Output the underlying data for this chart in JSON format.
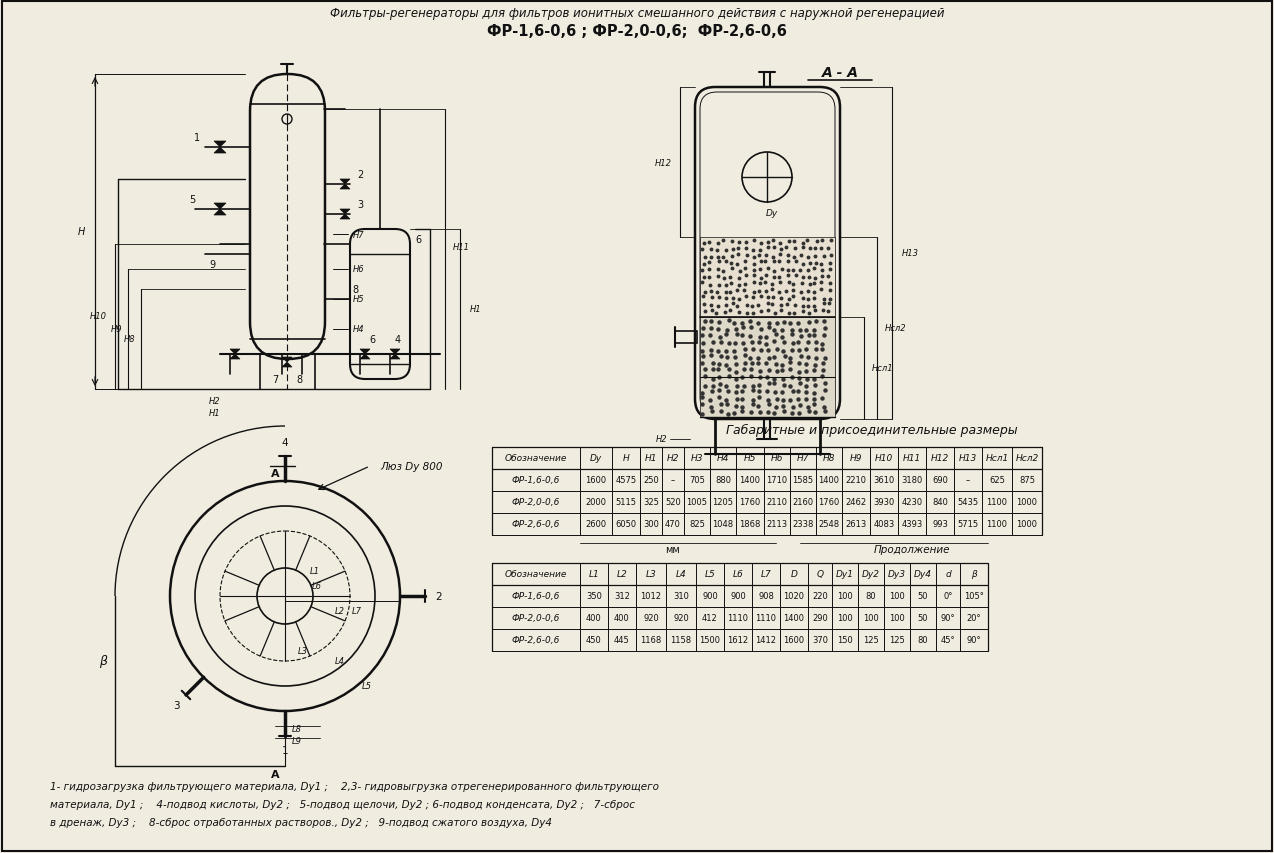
{
  "title_line1": "Фильтры-регенераторы для фильтров ионитных смешанного действия с наружной регенерацией",
  "title_line2": "ФР-1,6-0,6 ; ФР-2,0-0,6;  ФР-2,6-0,6",
  "section_label": "А - А",
  "table_title": "Габаритные и присоединительные размеры",
  "mm_label": "мм",
  "prodolzhenie_label": "Продолжение",
  "table1_headers": [
    "Обозначение",
    "Dy",
    "H",
    "H1",
    "H2",
    "H3",
    "H4",
    "H5",
    "H6",
    "H7",
    "H8",
    "H9",
    "H10",
    "H11",
    "H12",
    "H13",
    "Нсл1",
    "Нсл2"
  ],
  "table1_rows": [
    [
      "ФР-1,6-0,6",
      "1600",
      "4575",
      "250",
      "–",
      "705",
      "880",
      "1400",
      "1710",
      "1585",
      "1400",
      "2210",
      "3610",
      "3180",
      "690",
      "–",
      "625",
      "875"
    ],
    [
      "ФР-2,0-0,6",
      "2000",
      "5115",
      "325",
      "520",
      "1005",
      "1205",
      "1760",
      "2110",
      "2160",
      "1760",
      "2462",
      "3930",
      "4230",
      "840",
      "5435",
      "1100",
      "1000"
    ],
    [
      "ФР-2,6-0,6",
      "2600",
      "6050",
      "300",
      "470",
      "825",
      "1048",
      "1868",
      "2113",
      "2338",
      "2548",
      "2613",
      "4083",
      "4393",
      "993",
      "5715",
      "1100",
      "1000"
    ]
  ],
  "table2_headers": [
    "Обозначение",
    "L1",
    "L2",
    "L3",
    "L4",
    "L5",
    "L6",
    "L7",
    "D",
    "Q",
    "Dy1",
    "Dy2",
    "Dy3",
    "Dy4",
    "d",
    "β"
  ],
  "table2_rows": [
    [
      "ФР-1,6-0,6",
      "350",
      "312",
      "1012",
      "310",
      "900",
      "900",
      "908",
      "1020",
      "220",
      "100",
      "80",
      "100",
      "50",
      "0°",
      "105°"
    ],
    [
      "ФР-2,0-0,6",
      "400",
      "400",
      "920",
      "920",
      "412",
      "1110",
      "1110",
      "1400",
      "290",
      "100",
      "100",
      "100",
      "50",
      "90°",
      "20°"
    ],
    [
      "ФР-2,6-0,6",
      "450",
      "445",
      "1168",
      "1158",
      "1500",
      "1612",
      "1412",
      "1600",
      "370",
      "150",
      "125",
      "125",
      "80",
      "45°",
      "90°"
    ]
  ],
  "footnote_line1": "1- гидрозагрузка фильтрующего материала, Dy1 ;    2,3- гидровыгрузка отрегенерированного фильтрующего",
  "footnote_line2": "материала, Dy1 ;    4-подвод кислоты, Dy2 ;   5-подвод щелочи, Dy2 ; 6-подвод конденсата, Dy2 ;   7-сброс",
  "footnote_line3": "в дренаж, Dy3 ;    8-сброс отработанных растворов., Dy2 ;   9-подвод сжатого воздуха, Dy4",
  "bg_color": "#f0ece0",
  "line_color": "#111111",
  "text_color": "#111111"
}
